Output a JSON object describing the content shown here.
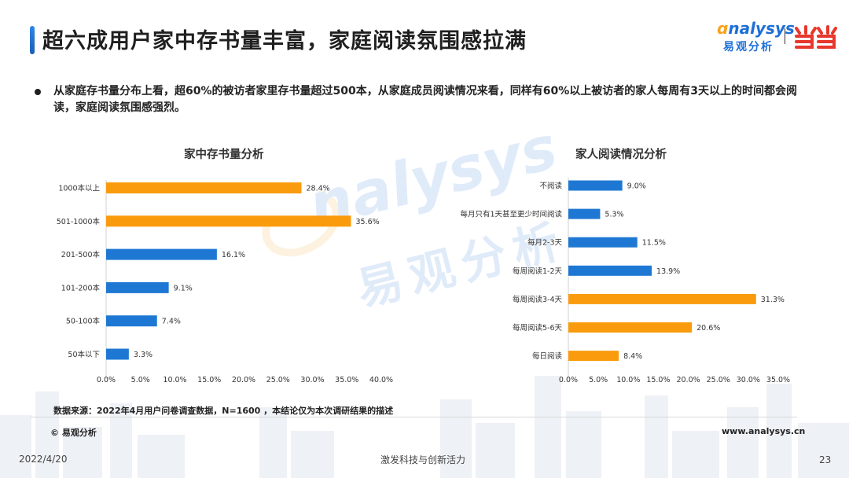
{
  "header": {
    "title": "超六成用户家中存书量丰富，家庭阅读氛围感拉满",
    "logo_word": "nalysys",
    "logo_cn": "易观分析"
  },
  "summary": "从家庭存书量分布上看，超60%的被访者家里存书量超过500本，从家庭成员阅读情况来看，同样有60%以上被访者的家人每周有3天以上的时间都会阅读，家庭阅读氛围感强烈。",
  "watermark": {
    "en": "nalysys",
    "cn": "易观分析"
  },
  "colors": {
    "orange": "#f99b0c",
    "blue": "#1e78d3",
    "accent": "#2f86e6"
  },
  "chart_data": [
    {
      "type": "bar",
      "orientation": "horizontal",
      "title": "家中存书量分析",
      "categories": [
        "1000本以上",
        "501-1000本",
        "201-500本",
        "101-200本",
        "50-100本",
        "50本以下"
      ],
      "values": [
        28.4,
        35.6,
        16.1,
        9.1,
        7.4,
        3.3
      ],
      "value_labels": [
        "28.4%",
        "35.6%",
        "16.1%",
        "9.1%",
        "7.4%",
        "3.3%"
      ],
      "bar_colors": [
        "#f99b0c",
        "#f99b0c",
        "#1e78d3",
        "#1e78d3",
        "#1e78d3",
        "#1e78d3"
      ],
      "xlim": [
        0,
        40
      ],
      "ticks": [
        "0.0%",
        "5.0%",
        "10.0%",
        "15.0%",
        "20.0%",
        "25.0%",
        "30.0%",
        "35.0%",
        "40.0%"
      ],
      "grid": false
    },
    {
      "type": "bar",
      "orientation": "horizontal",
      "title": "家人阅读情况分析",
      "categories": [
        "不阅读",
        "每月只有1天甚至更少时间阅读",
        "每月2-3天",
        "每周阅读1-2天",
        "每周阅读3-4天",
        "每周阅读5-6天",
        "每日阅读"
      ],
      "values": [
        9.0,
        5.3,
        11.5,
        13.9,
        31.3,
        20.6,
        8.4
      ],
      "value_labels": [
        "9.0%",
        "5.3%",
        "11.5%",
        "13.9%",
        "31.3%",
        "20.6%",
        "8.4%"
      ],
      "bar_colors": [
        "#1e78d3",
        "#1e78d3",
        "#1e78d3",
        "#1e78d3",
        "#f99b0c",
        "#f99b0c",
        "#f99b0c"
      ],
      "xlim": [
        0,
        35
      ],
      "ticks": [
        "0.0%",
        "5.0%",
        "10.0%",
        "15.0%",
        "20.0%",
        "25.0%",
        "30.0%",
        "35.0%"
      ],
      "grid": false
    }
  ],
  "footer": {
    "source": "数据来源：2022年4月用户问卷调查数据，N=1600 ，本结论仅为本次调研结果的描述",
    "copyright": "© 易观分析",
    "website": "www.analysys.cn",
    "date": "2022/4/20",
    "slogan": "激发科技与创新活力",
    "page": "23"
  }
}
